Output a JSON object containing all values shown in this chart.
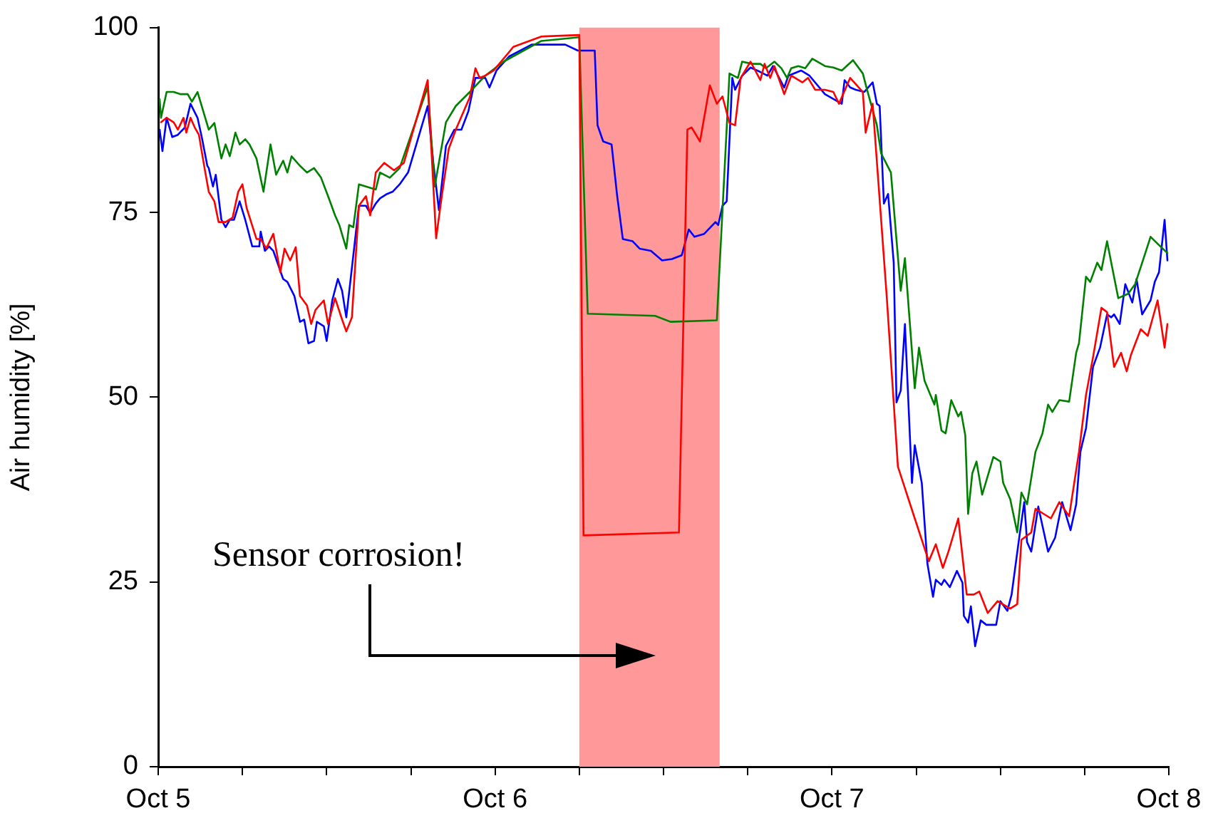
{
  "chart_data": {
    "type": "line",
    "ylabel": "Air humidity [%]",
    "marker": "none",
    "xlim": [
      "--10-05",
      "--10-08"
    ],
    "xticks": [
      {
        "value": "--10-05",
        "label": "Oct 5"
      },
      {
        "value": "--10-05T06:00",
        "label": null
      },
      {
        "value": "--10-05T12:00",
        "label": null
      },
      {
        "value": "--10-05T18:00",
        "label": null
      },
      {
        "value": "--10-06",
        "label": "Oct 6"
      },
      {
        "value": "--10-06T06:00",
        "label": null
      },
      {
        "value": "--10-06T12:00",
        "label": null
      },
      {
        "value": "--10-06T18:00",
        "label": null
      },
      {
        "value": "--10-07",
        "label": "Oct 7"
      },
      {
        "value": "--10-07T06:00",
        "label": null
      },
      {
        "value": "--10-07T12:00",
        "label": null
      },
      {
        "value": "--10-07T18:00",
        "label": null
      },
      {
        "value": "--10-08",
        "label": "Oct 8"
      }
    ],
    "ylim": [
      0,
      100
    ],
    "yticks": [
      0,
      25,
      50,
      75,
      100
    ],
    "bands": [
      {
        "axis": "x",
        "from": "--10-06T06:00",
        "to": "--10-06T16:00",
        "color": "#ff9999"
      }
    ],
    "annotations": [
      "Sensor corrosion!"
    ],
    "series": [
      {
        "color": "#ff0000",
        "x": [
          "--10-05T00:12",
          "--10-05T00:36",
          "--10-05T01:06",
          "--10-05T01:24",
          "--10-05T01:48",
          "--10-05T02:00",
          "--10-05T02:18",
          "--10-05T02:36",
          "--10-05T02:54",
          "--10-05T03:18",
          "--10-05T03:36",
          "--10-05T04:00",
          "--10-05T04:18",
          "--10-05T04:48",
          "--10-05T05:18",
          "--10-05T05:42",
          "--10-05T06:00",
          "--10-05T06:18",
          "--10-05T07:00",
          "--10-05T07:18",
          "--10-05T07:42",
          "--10-05T08:12",
          "--10-05T08:42",
          "--10-05T09:00",
          "--10-05T09:24",
          "--10-05T09:48",
          "--10-05T10:06",
          "--10-05T10:36",
          "--10-05T10:54",
          "--10-05T11:12",
          "--10-05T11:48",
          "--10-05T12:06",
          "--10-05T12:36",
          "--10-05T13:06",
          "--10-05T13:24",
          "--10-05T13:48",
          "--10-05T14:18",
          "--10-05T14:48",
          "--10-05T15:06",
          "--10-05T15:30",
          "--10-05T16:06",
          "--10-05T16:48",
          "--10-05T17:30",
          "--10-05T19:12",
          "--10-05T19:48",
          "--10-05T20:12",
          "--10-05T20:42",
          "--10-05T21:12",
          "--10-05T22:12",
          "--10-05T22:36",
          "--10-05T22:54",
          "--10-05T23:18",
          "--10-05T23:54",
          "--10-06T01:00",
          "--10-06T01:18",
          "--10-06T03:18",
          "--10-06T06:00",
          "--10-06T06:18",
          "--10-06T13:06",
          "--10-06T13:42",
          "--10-06T14:00",
          "--10-06T14:36",
          "--10-06T15:18",
          "--10-06T15:48",
          "--10-06T16:12",
          "--10-06T16:42",
          "--10-06T17:06",
          "--10-06T17:30",
          "--10-06T18:12",
          "--10-06T18:54",
          "--10-06T19:12",
          "--10-06T19:36",
          "--10-06T19:54",
          "--10-06T20:36",
          "--10-06T21:06",
          "--10-06T21:54",
          "--10-06T22:18",
          "--10-06T22:48",
          "--10-06T23:30",
          "--10-07T00:06",
          "--10-07T00:30",
          "--10-07T01:18",
          "--10-07T02:12",
          "--10-07T02:24",
          "--10-07T02:54",
          "--10-07T03:54",
          "--10-07T04:42",
          "--10-07T05:54",
          "--10-07T06:54",
          "--10-07T07:24",
          "--10-07T07:54",
          "--10-07T08:18",
          "--10-07T09:00",
          "--10-07T09:36",
          "--10-07T10:06",
          "--10-07T10:30",
          "--10-07T11:06",
          "--10-07T11:48",
          "--10-07T12:42",
          "--10-07T13:12",
          "--10-07T13:30",
          "--10-07T14:12",
          "--10-07T14:30",
          "--10-07T15:36",
          "--10-07T16:12",
          "--10-07T16:54",
          "--10-07T17:36",
          "--10-07T18:06",
          "--10-07T18:36",
          "--10-07T19:12",
          "--10-07T19:36",
          "--10-07T20:06",
          "--10-07T20:36",
          "--10-07T21:00",
          "--10-07T21:18",
          "--10-07T22:00",
          "--10-07T22:30",
          "--10-07T23:12",
          "--10-07T23:42",
          "--10-07T23:54"
        ],
        "values": [
          87.2,
          87.8,
          87.2,
          86.2,
          87.8,
          85.8,
          87.8,
          86.5,
          85.5,
          81.0,
          77.8,
          76.5,
          73.7,
          73.7,
          74.3,
          77.8,
          78.8,
          75.6,
          71.4,
          71.4,
          70.1,
          72.1,
          66.9,
          70.1,
          68.5,
          70.3,
          63.7,
          62.4,
          59.9,
          61.8,
          63.1,
          59.9,
          63.4,
          60.5,
          58.9,
          60.8,
          75.9,
          77.2,
          74.6,
          80.4,
          81.7,
          80.7,
          81.7,
          92.9,
          71.5,
          77.2,
          83.6,
          86.2,
          90.6,
          94.5,
          93.2,
          93.5,
          94.2,
          96.7,
          97.4,
          98.8,
          99.0,
          31.3,
          31.7,
          86.2,
          86.5,
          84.6,
          92.2,
          89.7,
          90.7,
          87.1,
          86.8,
          93.2,
          95.4,
          92.9,
          95.1,
          93.2,
          94.8,
          91.0,
          93.5,
          92.6,
          93.2,
          91.6,
          91.6,
          91.3,
          89.7,
          93.2,
          91.3,
          85.8,
          89.7,
          63.7,
          40.6,
          33.6,
          27.8,
          30.1,
          26.9,
          29.1,
          33.6,
          23.3,
          23.3,
          23.7,
          20.8,
          22.4,
          21.4,
          22.0,
          30.7,
          31.7,
          34.9,
          33.6,
          35.8,
          33.9,
          42.6,
          50.3,
          55.4,
          62.1,
          61.5,
          54.1,
          56.0,
          53.5,
          55.7,
          59.2,
          58.3,
          63.1,
          56.7,
          59.9
        ]
      },
      {
        "color": "#008000",
        "x": [
          "--10-05T00:06",
          "--10-05T00:12",
          "--10-05T00:36",
          "--10-05T01:06",
          "--10-05T01:36",
          "--10-05T02:06",
          "--10-05T02:24",
          "--10-05T02:48",
          "--10-05T03:18",
          "--10-05T03:36",
          "--10-05T04:00",
          "--10-05T04:30",
          "--10-05T04:48",
          "--10-05T05:06",
          "--10-05T05:30",
          "--10-05T05:48",
          "--10-05T06:12",
          "--10-05T06:30",
          "--10-05T07:00",
          "--10-05T07:30",
          "--10-05T08:00",
          "--10-05T08:24",
          "--10-05T08:54",
          "--10-05T09:12",
          "--10-05T09:30",
          "--10-05T10:06",
          "--10-05T10:36",
          "--10-05T11:06",
          "--10-05T11:36",
          "--10-05T12:06",
          "--10-05T12:36",
          "--10-05T12:54",
          "--10-05T13:24",
          "--10-05T13:36",
          "--10-05T13:54",
          "--10-05T14:18",
          "--10-05T14:48",
          "--10-05T15:30",
          "--10-05T15:48",
          "--10-05T16:30",
          "--10-05T17:12",
          "--10-05T19:12",
          "--10-05T19:42",
          "--10-05T20:30",
          "--10-05T21:12",
          "--10-05T22:12",
          "--10-05T23:18",
          "--10-06T00:36",
          "--10-06T03:18",
          "--10-06T06:00",
          "--10-06T06:36",
          "--10-06T11:24",
          "--10-06T12:30",
          "--10-06T15:48",
          "--10-06T16:42",
          "--10-06T17:18",
          "--10-06T17:36",
          "--10-06T18:18",
          "--10-06T18:54",
          "--10-06T19:18",
          "--10-06T19:54",
          "--10-06T20:24",
          "--10-06T20:48",
          "--10-06T21:06",
          "--10-06T21:36",
          "--10-06T22:06",
          "--10-06T22:36",
          "--10-06T23:30",
          "--10-07T00:06",
          "--10-07T00:42",
          "--10-07T01:30",
          "--10-07T02:12",
          "--10-07T02:30",
          "--10-07T03:12",
          "--10-07T03:30",
          "--10-07T04:12",
          "--10-07T04:54",
          "--10-07T05:12",
          "--10-07T05:54",
          "--10-07T06:12",
          "--10-07T06:36",
          "--10-07T07:18",
          "--10-07T07:24",
          "--10-07T07:48",
          "--10-07T08:06",
          "--10-07T08:30",
          "--10-07T09:00",
          "--10-07T09:12",
          "--10-07T09:30",
          "--10-07T09:42",
          "--10-07T10:00",
          "--10-07T10:18",
          "--10-07T10:42",
          "--10-07T11:00",
          "--10-07T11:30",
          "--10-07T12:00",
          "--10-07T12:12",
          "--10-07T12:42",
          "--10-07T13:12",
          "--10-07T13:30",
          "--10-07T13:54",
          "--10-07T14:30",
          "--10-07T15:00",
          "--10-07T15:24",
          "--10-07T15:42",
          "--10-07T16:12",
          "--10-07T16:54",
          "--10-07T17:24",
          "--10-07T17:36",
          "--10-07T18:06",
          "--10-07T18:24",
          "--10-07T18:54",
          "--10-07T19:12",
          "--10-07T19:36",
          "--10-07T19:54",
          "--10-07T20:24",
          "--10-07T21:06",
          "--10-07T21:36",
          "--10-07T22:00",
          "--10-07T22:42",
          "--10-07T23:24",
          "--10-07T23:54"
        ],
        "values": [
          90.3,
          87.8,
          91.3,
          91.3,
          91.0,
          91.0,
          90.0,
          91.3,
          88.1,
          86.2,
          87.1,
          82.3,
          84.2,
          82.6,
          85.8,
          84.2,
          84.9,
          84.2,
          82.3,
          77.8,
          84.2,
          80.1,
          82.0,
          80.4,
          82.6,
          81.3,
          80.4,
          81.0,
          79.7,
          77.2,
          74.6,
          73.3,
          70.1,
          73.3,
          73.0,
          78.8,
          78.5,
          78.1,
          80.4,
          79.7,
          81.0,
          92.0,
          78.5,
          87.2,
          89.4,
          91.3,
          93.5,
          95.4,
          98.2,
          98.7,
          61.3,
          61.0,
          60.2,
          60.4,
          93.8,
          93.2,
          95.4,
          95.1,
          95.1,
          94.5,
          95.4,
          94.5,
          93.2,
          94.5,
          94.8,
          94.5,
          95.8,
          94.8,
          94.6,
          94.2,
          95.6,
          93.8,
          91.6,
          86.8,
          83.0,
          80.4,
          64.4,
          68.8,
          51.2,
          56.7,
          52.2,
          49.0,
          50.3,
          45.5,
          45.1,
          49.6,
          47.4,
          48.0,
          44.8,
          34.2,
          39.7,
          41.3,
          36.8,
          38.7,
          41.9,
          41.3,
          38.4,
          36.2,
          31.7,
          37.1,
          35.5,
          42.6,
          45.1,
          49.0,
          48.0,
          49.6,
          49.4,
          56.0,
          57.3,
          66.3,
          65.6,
          68.2,
          67.2,
          71.1,
          68.2,
          63.4,
          64.0,
          65.3,
          67.6,
          71.7,
          70.4,
          69.5
        ]
      },
      {
        "color": "#0000ff",
        "x": [
          "--10-05T00:06",
          "--10-05T00:18",
          "--10-05T00:36",
          "--10-05T01:00",
          "--10-05T01:24",
          "--10-05T01:54",
          "--10-05T02:18",
          "--10-05T02:48",
          "--10-05T03:06",
          "--10-05T03:30",
          "--10-05T03:36",
          "--10-05T03:54",
          "--10-05T04:06",
          "--10-05T04:30",
          "--10-05T04:48",
          "--10-05T05:06",
          "--10-05T05:24",
          "--10-05T05:48",
          "--10-05T06:12",
          "--10-05T06:42",
          "--10-05T07:12",
          "--10-05T07:18",
          "--10-05T07:36",
          "--10-05T07:54",
          "--10-05T08:12",
          "--10-05T08:54",
          "--10-05T09:12",
          "--10-05T09:42",
          "--10-05T10:06",
          "--10-05T10:24",
          "--10-05T10:42",
          "--10-05T11:06",
          "--10-05T11:18",
          "--10-05T11:48",
          "--10-05T12:00",
          "--10-05T12:24",
          "--10-05T12:48",
          "--10-05T13:06",
          "--10-05T13:24",
          "--10-05T14:18",
          "--10-05T14:48",
          "--10-05T15:06",
          "--10-05T15:30",
          "--10-05T15:48",
          "--10-05T16:18",
          "--10-05T16:42",
          "--10-05T17:12",
          "--10-05T17:48",
          "--10-05T19:12",
          "--10-05T19:36",
          "--10-05T20:00",
          "--10-05T20:30",
          "--10-05T21:06",
          "--10-05T21:36",
          "--10-05T22:06",
          "--10-05T22:36",
          "--10-05T23:18",
          "--10-05T23:36",
          "--10-06T00:06",
          "--10-06T01:00",
          "--10-06T02:36",
          "--10-06T05:00",
          "--10-06T05:54",
          "--10-06T07:06",
          "--10-06T07:18",
          "--10-06T07:42",
          "--10-06T08:18",
          "--10-06T08:42",
          "--10-06T09:06",
          "--10-06T09:48",
          "--10-06T10:18",
          "--10-06T11:06",
          "--10-06T11:54",
          "--10-06T12:36",
          "--10-06T13:18",
          "--10-06T13:48",
          "--10-06T14:12",
          "--10-06T14:54",
          "--10-06T15:42",
          "--10-06T15:54",
          "--10-06T16:12",
          "--10-06T16:30",
          "--10-06T16:54",
          "--10-06T17:06",
          "--10-06T17:36",
          "--10-06T18:12",
          "--10-06T18:54",
          "--10-06T19:24",
          "--10-06T19:48",
          "--10-06T20:36",
          "--10-06T20:54",
          "--10-06T21:48",
          "--10-06T22:24",
          "--10-06T23:30",
          "--10-07T00:42",
          "--10-07T00:54",
          "--10-07T01:18",
          "--10-07T01:42",
          "--10-07T02:18",
          "--10-07T02:54",
          "--10-07T03:12",
          "--10-07T03:24",
          "--10-07T03:42",
          "--10-07T04:00",
          "--10-07T04:24",
          "--10-07T04:36",
          "--10-07T04:54",
          "--10-07T05:12",
          "--10-07T05:42",
          "--10-07T05:54",
          "--10-07T06:24",
          "--10-07T06:48",
          "--10-07T07:12",
          "--10-07T07:24",
          "--10-07T07:48",
          "--10-07T08:00",
          "--10-07T08:24",
          "--10-07T08:54",
          "--10-07T09:18",
          "--10-07T09:24",
          "--10-07T09:42",
          "--10-07T09:54",
          "--10-07T10:12",
          "--10-07T10:36",
          "--10-07T11:00",
          "--10-07T11:42",
          "--10-07T12:00",
          "--10-07T12:30",
          "--10-07T12:48",
          "--10-07T13:18",
          "--10-07T13:42",
          "--10-07T13:54",
          "--10-07T14:12",
          "--10-07T14:42",
          "--10-07T15:24",
          "--10-07T15:54",
          "--10-07T16:24",
          "--10-07T17:00",
          "--10-07T17:24",
          "--10-07T17:42",
          "--10-07T18:06",
          "--10-07T18:36",
          "--10-07T19:06",
          "--10-07T19:36",
          "--10-07T19:54",
          "--10-07T20:06",
          "--10-07T20:30",
          "--10-07T20:54",
          "--10-07T21:24",
          "--10-07T21:42",
          "--10-07T22:06",
          "--10-07T22:42",
          "--10-07T23:00",
          "--10-07T23:18",
          "--10-07T23:42",
          "--10-07T23:54"
        ],
        "values": [
          86.2,
          83.3,
          87.8,
          85.2,
          85.5,
          86.5,
          89.7,
          87.8,
          85.2,
          81.3,
          81.0,
          78.5,
          80.1,
          74.0,
          73.0,
          74.0,
          74.0,
          76.5,
          74.0,
          70.4,
          70.4,
          72.4,
          69.8,
          70.4,
          69.8,
          66.0,
          65.6,
          63.7,
          60.2,
          60.5,
          57.3,
          57.6,
          60.2,
          59.6,
          57.6,
          63.1,
          66.0,
          64.4,
          60.8,
          75.9,
          75.9,
          74.9,
          76.2,
          76.9,
          77.5,
          77.8,
          78.8,
          80.4,
          89.4,
          81.7,
          75.3,
          84.0,
          86.2,
          86.2,
          88.7,
          93.2,
          93.2,
          91.9,
          94.2,
          96.1,
          97.7,
          97.7,
          96.9,
          96.9,
          86.8,
          84.6,
          84.2,
          77.2,
          71.4,
          71.1,
          70.1,
          69.8,
          68.5,
          68.7,
          69.2,
          72.7,
          71.7,
          72.1,
          73.7,
          73.3,
          75.9,
          76.5,
          93.2,
          91.6,
          93.5,
          94.6,
          94.0,
          93.5,
          94.8,
          91.9,
          93.5,
          94.2,
          93.5,
          91.0,
          89.7,
          92.9,
          91.9,
          91.6,
          91.3,
          92.6,
          89.7,
          89.4,
          76.2,
          77.5,
          68.2,
          49.3,
          50.9,
          59.9,
          38.4,
          43.5,
          38.4,
          27.5,
          23.0,
          25.3,
          24.6,
          25.3,
          24.3,
          26.5,
          24.9,
          20.4,
          19.5,
          21.7,
          16.3,
          19.8,
          19.2,
          19.2,
          22.4,
          21.1,
          23.3,
          30.4,
          35.8,
          30.4,
          29.1,
          35.2,
          29.1,
          31.0,
          35.8,
          32.0,
          35.5,
          42.6,
          45.8,
          54.1,
          56.7,
          61.2,
          60.8,
          61.2,
          59.9,
          65.3,
          62.8,
          66.0,
          61.2,
          63.1,
          65.6,
          66.9,
          74.0,
          68.5
        ]
      }
    ]
  }
}
